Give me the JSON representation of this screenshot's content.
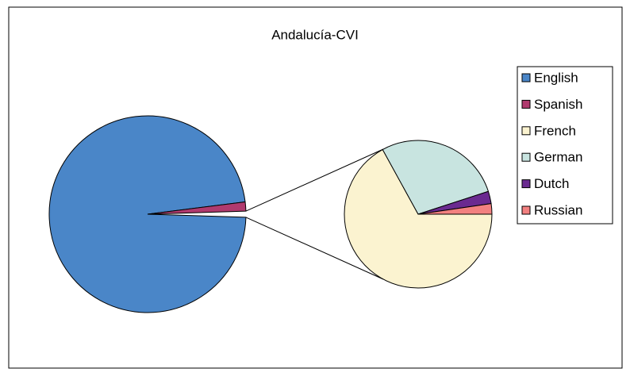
{
  "chart_data": {
    "type": "pie-of-pie",
    "title": "Andalucía-CVI",
    "categories": [
      "English",
      "Spanish",
      "French",
      "German",
      "Dutch",
      "Russian"
    ],
    "values": [
      97.5,
      1.5,
      0.67,
      0.28,
      0.027,
      0.023
    ],
    "colors": [
      "#4a86c8",
      "#b03a6e",
      "#fbf3d0",
      "#c8e4e0",
      "#6a2a90",
      "#f28080"
    ],
    "second_plot_count": 4,
    "legend": "right"
  }
}
